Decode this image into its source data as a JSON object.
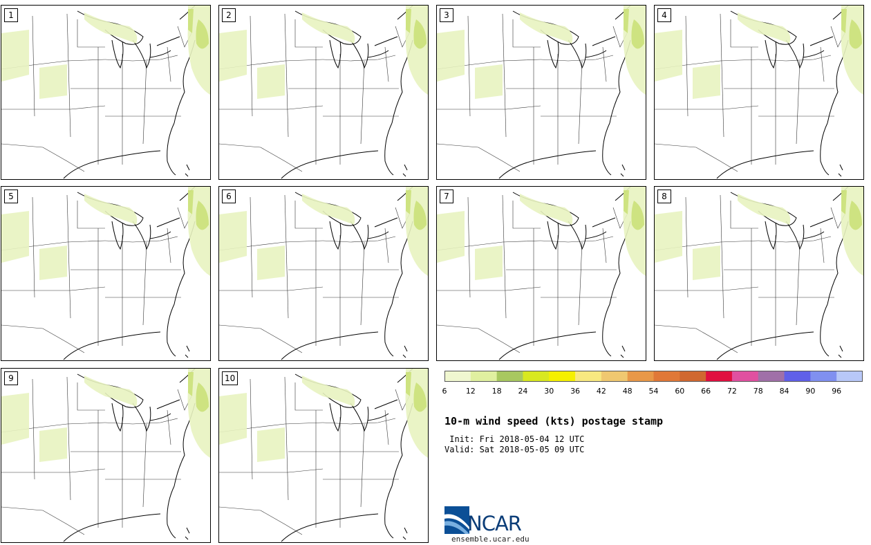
{
  "title": "10-m wind speed (kts) postage stamp",
  "init_text": " Init: Fri 2018-05-04 12 UTC",
  "valid_text": "Valid: Sat 2018-05-05 09 UTC",
  "members": [
    "1",
    "2",
    "3",
    "4",
    "5",
    "6",
    "7",
    "8",
    "9",
    "10"
  ],
  "colorbar": {
    "colors": [
      "#f0f7d0",
      "#e0f0a0",
      "#a8c860",
      "#d8e820",
      "#f5f000",
      "#f8e880",
      "#f0c870",
      "#e89848",
      "#e07838",
      "#d06830",
      "#e01040",
      "#e050a0",
      "#a070a8",
      "#6060e8",
      "#8090f0",
      "#b8c8f8"
    ],
    "ticks": [
      "6",
      "12",
      "18",
      "24",
      "30",
      "36",
      "42",
      "48",
      "54",
      "60",
      "66",
      "72",
      "78",
      "84",
      "90",
      "96"
    ]
  },
  "logo": {
    "name": "NCAR",
    "url": "ensemble.ucar.edu"
  }
}
